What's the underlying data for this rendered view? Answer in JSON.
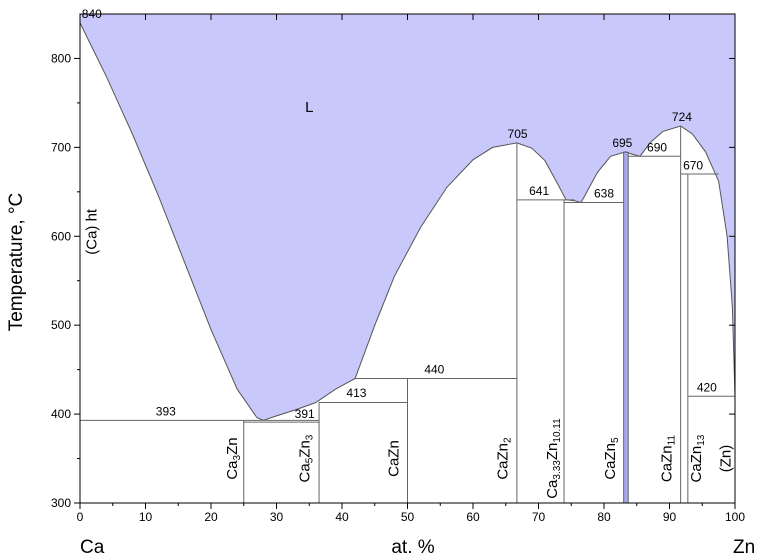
{
  "chart_data": {
    "type": "phase-diagram",
    "ylabel": "Temperature, °C",
    "xlabel": "at. %",
    "x_left_element": "Ca",
    "x_right_element": "Zn",
    "xlim": [
      0,
      100
    ],
    "ylim": [
      300,
      850
    ],
    "x_ticks": [
      0,
      10,
      20,
      30,
      40,
      50,
      60,
      70,
      80,
      90,
      100
    ],
    "y_ticks": [
      300,
      400,
      500,
      600,
      700,
      800
    ],
    "colors": {
      "liquid_fill": "#c8c8fa",
      "liquid_edge": "#555555",
      "lines": "#666666"
    },
    "phases": [
      {
        "id": "liquid",
        "label": "L",
        "x": 35,
        "y": 740
      },
      {
        "id": "ca-ht",
        "label": "(Ca) ht",
        "x": 2.5,
        "y": 605,
        "rotate": true
      },
      {
        "id": "ca3zn",
        "label": "Ca3Zn",
        "main": "Ca",
        "sub1": "3",
        "tail": "Zn",
        "sub2": "",
        "x": 24,
        "y": 350,
        "rotate": true
      },
      {
        "id": "ca5zn3",
        "label": "Ca5Zn3",
        "main": "Ca",
        "sub1": "5",
        "tail": "Zn",
        "sub2": "3",
        "x": 35,
        "y": 350,
        "rotate": true
      },
      {
        "id": "cazn",
        "label": "CaZn",
        "main": "CaZn",
        "sub1": "",
        "tail": "",
        "sub2": "",
        "x": 48.6,
        "y": 350,
        "rotate": true
      },
      {
        "id": "cazn2",
        "label": "CaZn2",
        "main": "CaZn",
        "sub1": "2",
        "tail": "",
        "sub2": "",
        "x": 65.3,
        "y": 350,
        "rotate": true
      },
      {
        "id": "ca333zn1011",
        "label": "Ca3.33Zn10.11",
        "main": "Ca",
        "sub1": "3.33",
        "tail": "Zn",
        "sub2": "10.11",
        "x": 72.8,
        "y": 350,
        "rotate": true
      },
      {
        "id": "cazn5",
        "label": "CaZn5",
        "main": "CaZn",
        "sub1": "5",
        "tail": "",
        "sub2": "",
        "x": 81.7,
        "y": 350,
        "rotate": true
      },
      {
        "id": "cazn11",
        "label": "CaZn11",
        "main": "CaZn",
        "sub1": "11",
        "tail": "",
        "sub2": "",
        "x": 90.3,
        "y": 350,
        "rotate": true
      },
      {
        "id": "cazn13",
        "label": "CaZn13",
        "main": "CaZn",
        "sub1": "13",
        "tail": "",
        "sub2": "",
        "x": 94.8,
        "y": 350,
        "rotate": true
      },
      {
        "id": "zn",
        "label": "(Zn)",
        "x": 99.3,
        "y": 350,
        "rotate": true
      }
    ],
    "annotations": [
      {
        "text": "840",
        "x": 1.8,
        "y": 842
      },
      {
        "text": "393",
        "x": 13.1,
        "y": 395
      },
      {
        "text": "391",
        "x": 34.3,
        "y": 392
      },
      {
        "text": "413",
        "x": 42.2,
        "y": 416
      },
      {
        "text": "440",
        "x": 54.1,
        "y": 442
      },
      {
        "text": "705",
        "x": 66.8,
        "y": 707
      },
      {
        "text": "641",
        "x": 70.1,
        "y": 643
      },
      {
        "text": "638",
        "x": 80.0,
        "y": 640
      },
      {
        "text": "695",
        "x": 82.8,
        "y": 697
      },
      {
        "text": "690",
        "x": 88.1,
        "y": 692
      },
      {
        "text": "724",
        "x": 91.9,
        "y": 726
      },
      {
        "text": "670",
        "x": 93.6,
        "y": 672
      },
      {
        "text": "420",
        "x": 95.7,
        "y": 422
      }
    ],
    "liquidus": [
      [
        0,
        840
      ],
      [
        4,
        780
      ],
      [
        8,
        715
      ],
      [
        12,
        645
      ],
      [
        16,
        570
      ],
      [
        20,
        495
      ],
      [
        24,
        428
      ],
      [
        27,
        396
      ],
      [
        28,
        393
      ],
      [
        30,
        398
      ],
      [
        33,
        405
      ],
      [
        36,
        413
      ],
      [
        39,
        428
      ],
      [
        42,
        440
      ],
      [
        45,
        500
      ],
      [
        48,
        555
      ],
      [
        52,
        610
      ],
      [
        56,
        655
      ],
      [
        60,
        686
      ],
      [
        63,
        700
      ],
      [
        66.7,
        705
      ],
      [
        69,
        699
      ],
      [
        71,
        685
      ],
      [
        73,
        658
      ],
      [
        74.2,
        641
      ],
      [
        75.5,
        640
      ],
      [
        76.5,
        638
      ],
      [
        79,
        672
      ],
      [
        81,
        690
      ],
      [
        83.3,
        695
      ],
      [
        84,
        693
      ],
      [
        85.5,
        690
      ],
      [
        87,
        705
      ],
      [
        89,
        718
      ],
      [
        91.7,
        724
      ],
      [
        93.5,
        715
      ],
      [
        95.5,
        695
      ],
      [
        97.5,
        662
      ],
      [
        98.8,
        600
      ],
      [
        99.6,
        520
      ],
      [
        100,
        420
      ]
    ],
    "horizontal_lines": [
      {
        "temp": 393,
        "x1": 0,
        "x2": 36.5
      },
      {
        "temp": 391,
        "x1": 25,
        "x2": 36.5
      },
      {
        "temp": 413,
        "x1": 36.5,
        "x2": 50
      },
      {
        "temp": 440,
        "x1": 42,
        "x2": 66.7
      },
      {
        "temp": 641,
        "x1": 66.7,
        "x2": 75.5
      },
      {
        "temp": 638,
        "x1": 73.9,
        "x2": 83.0
      },
      {
        "temp": 690,
        "x1": 83.7,
        "x2": 91.7
      },
      {
        "temp": 670,
        "x1": 91.7,
        "x2": 97.5
      },
      {
        "temp": 420,
        "x1": 92.8,
        "x2": 100
      }
    ],
    "vertical_lines": [
      {
        "x": 25,
        "t_top": 393
      },
      {
        "x": 36.5,
        "t_top": 413
      },
      {
        "x": 50,
        "t_top": 440
      },
      {
        "x": 66.7,
        "t_top": 705
      },
      {
        "x": 73.9,
        "t_top": 641
      },
      {
        "x": 83.0,
        "t_top": 695
      },
      {
        "x": 83.7,
        "t_top": 695
      },
      {
        "x": 91.7,
        "t_top": 724
      },
      {
        "x": 92.8,
        "t_top": 670
      }
    ]
  }
}
